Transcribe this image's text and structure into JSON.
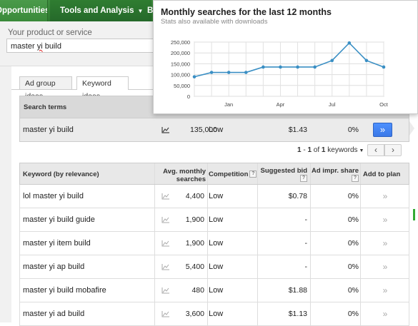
{
  "nav": {
    "opportunities": "Opportunities",
    "tools": "Tools and Analysis",
    "next": "B"
  },
  "product": {
    "label": "Your product or service",
    "value_prefix": "master ",
    "value_misspelled": "yi",
    "value_suffix": " build"
  },
  "tabs": [
    {
      "label": "Ad group ideas",
      "active": false
    },
    {
      "label": "Keyword ideas",
      "active": true
    }
  ],
  "search_terms": {
    "header": "Search terms",
    "row": {
      "keyword": "master yi build",
      "avg": "135,000",
      "competition": "Low",
      "bid": "$1.43",
      "share": "0%",
      "go": "»"
    }
  },
  "pager": {
    "start": "1",
    "dash": " - ",
    "end": "1",
    "of": " of ",
    "total": "1",
    "unit": " keywords"
  },
  "keyword_table": {
    "headers": {
      "keyword": "Keyword (by relevance)",
      "avg_line1": "Avg. monthly",
      "avg_line2": "searches",
      "competition": "Competition",
      "bid": "Suggested bid",
      "share_line1": "Ad impr. share",
      "add": "Add to plan"
    },
    "rows": [
      {
        "keyword": "lol master yi build",
        "avg": "4,400",
        "competition": "Low",
        "bid": "$0.78",
        "share": "0%"
      },
      {
        "keyword": "master yi build guide",
        "avg": "1,900",
        "competition": "Low",
        "bid": "-",
        "share": "0%"
      },
      {
        "keyword": "master yi item build",
        "avg": "1,900",
        "competition": "Low",
        "bid": "-",
        "share": "0%"
      },
      {
        "keyword": "master yi ap build",
        "avg": "5,400",
        "competition": "Low",
        "bid": "-",
        "share": "0%"
      },
      {
        "keyword": "master yi build mobafire",
        "avg": "480",
        "competition": "Low",
        "bid": "$1.88",
        "share": "0%"
      },
      {
        "keyword": "master yi ad build",
        "avg": "3,600",
        "competition": "Low",
        "bid": "$1.13",
        "share": "0%"
      }
    ]
  },
  "popup": {
    "title": "Monthly searches for the last 12 months",
    "subtitle": "Stats also available with downloads"
  },
  "chart_data": {
    "type": "line",
    "title": "Monthly searches for the last 12 months",
    "subtitle": "Stats also available with downloads",
    "y_ticks": [
      "0",
      "50,000",
      "100,000",
      "150,000",
      "200,000",
      "250,000"
    ],
    "x_tick_labels": [
      "Jan",
      "Apr",
      "Jul",
      "Oct"
    ],
    "ylim": [
      0,
      250000
    ],
    "grid": true,
    "color": "#3a8fc4",
    "series": [
      {
        "values": [
          90000,
          110000,
          110000,
          110000,
          135000,
          135000,
          135000,
          135000,
          165000,
          246000,
          165000,
          135000
        ]
      }
    ]
  },
  "icons": {
    "chart": "line-chart-icon",
    "add": "add-to-plan-icon",
    "help": "help-icon"
  }
}
